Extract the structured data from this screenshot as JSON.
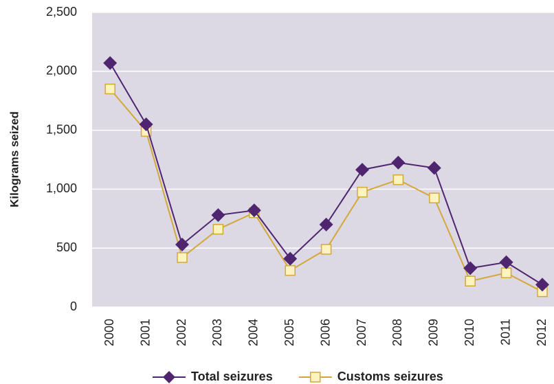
{
  "chart_data": {
    "type": "line",
    "y_label": "Kilograms seized",
    "categories": [
      "2000",
      "2001",
      "2002",
      "2003",
      "2004",
      "2005",
      "2006",
      "2007",
      "2008",
      "2009",
      "2010",
      "2011",
      "2012"
    ],
    "series": [
      {
        "name": "Total seizures",
        "color": "#4f2570",
        "marker": "diamond",
        "values": [
          2070,
          1550,
          530,
          780,
          820,
          410,
          700,
          1165,
          1225,
          1180,
          330,
          380,
          190
        ]
      },
      {
        "name": "Customs seizures",
        "color": "#d4a838",
        "marker": "square",
        "values": [
          1850,
          1490,
          420,
          660,
          800,
          310,
          490,
          975,
          1080,
          925,
          220,
          290,
          130
        ]
      }
    ],
    "ylim": [
      0,
      2500
    ],
    "yticks": [
      0,
      500,
      {
        "value": 1000,
        "label": "1,000"
      },
      {
        "value": 1500,
        "label": "1,500"
      },
      {
        "value": 2000,
        "label": "2,000"
      },
      {
        "value": 2500,
        "label": "2,500"
      }
    ],
    "grid": true,
    "legend": "bottom"
  }
}
